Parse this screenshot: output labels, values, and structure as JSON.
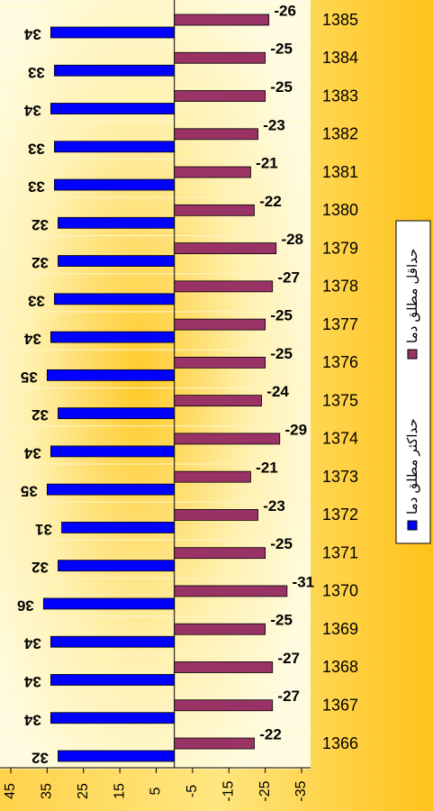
{
  "chart_data": {
    "type": "bar",
    "orientation": "horizontal",
    "categories": [
      "1366",
      "1367",
      "1368",
      "1369",
      "1370",
      "1371",
      "1372",
      "1373",
      "1374",
      "1375",
      "1376",
      "1377",
      "1378",
      "1379",
      "1380",
      "1381",
      "1382",
      "1383",
      "1384",
      "1385"
    ],
    "series": [
      {
        "name": "حداکثر مطلق دما",
        "color": "#0000ff",
        "values": [
          32,
          34,
          34,
          34,
          36,
          32,
          31,
          35,
          34,
          32,
          35,
          34,
          33,
          32,
          32,
          33,
          33,
          34,
          33,
          34
        ]
      },
      {
        "name": "حداقل مطلق دما",
        "color": "#993366",
        "values": [
          -22,
          -27,
          -27,
          -25,
          -31,
          -25,
          -23,
          -21,
          -29,
          -24,
          -25,
          -25,
          -27,
          -28,
          -22,
          -21,
          -23,
          -25,
          -25,
          -26
        ]
      }
    ],
    "xlim": [
      45,
      -35
    ],
    "xticks": [
      45,
      35,
      25,
      15,
      5,
      -5,
      -15,
      -25,
      -35
    ],
    "legend": "right",
    "data_labels": true
  }
}
